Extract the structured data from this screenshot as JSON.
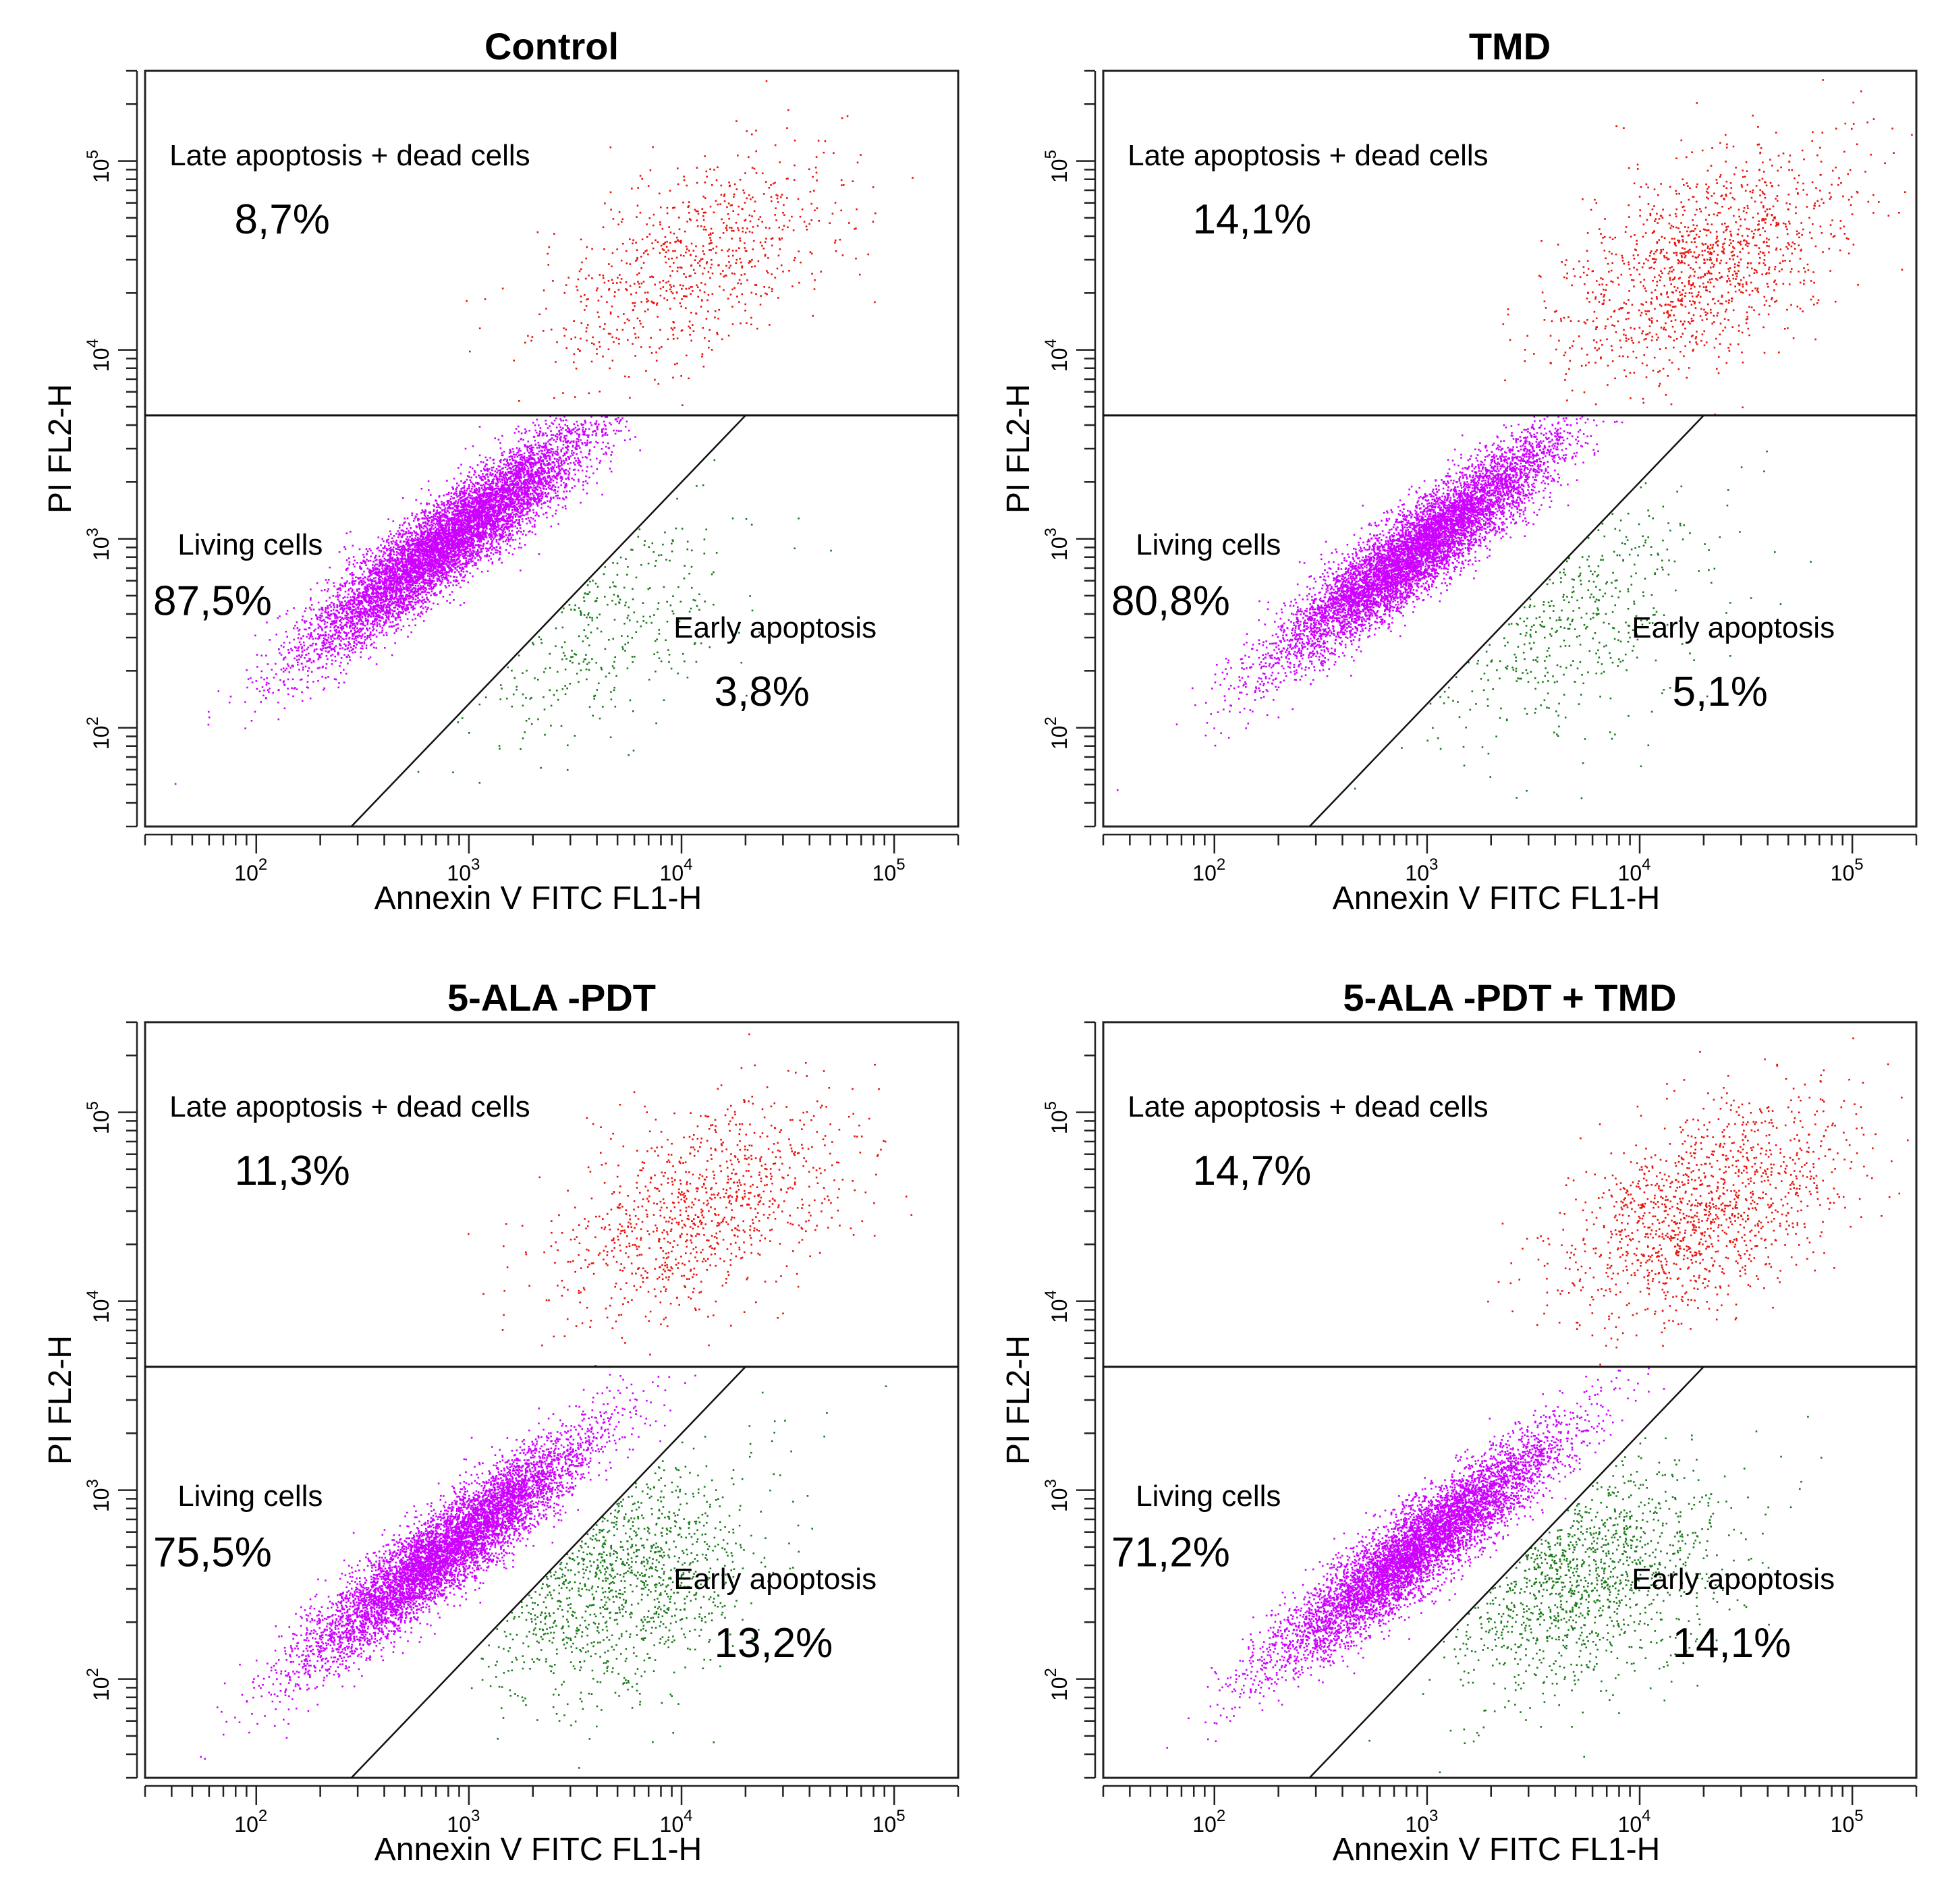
{
  "chart_data": [
    {
      "type": "scatter",
      "title": "Control",
      "xlabel": "Annexin V FITC FL1-H",
      "ylabel": "PI FL2-H",
      "xscale": "log",
      "yscale": "log",
      "xlim": [
        30,
        200000
      ],
      "ylim": [
        30,
        300000
      ],
      "xticks": [
        {
          "base": "10",
          "exp": "2"
        },
        {
          "base": "10",
          "exp": "3"
        },
        {
          "base": "10",
          "exp": "4"
        },
        {
          "base": "10",
          "exp": "5"
        }
      ],
      "yticks": [
        {
          "base": "10",
          "exp": "2"
        },
        {
          "base": "10",
          "exp": "3"
        },
        {
          "base": "10",
          "exp": "4"
        },
        {
          "base": "10",
          "exp": "5"
        }
      ],
      "gate": {
        "pi_threshold": 4500,
        "diagonal_from": [
          280,
          30
        ],
        "diagonal_to": [
          20000,
          4500
        ]
      },
      "quadrants": {
        "late": {
          "label": "Late apoptosis + dead cells",
          "value": "8,7%"
        },
        "living": {
          "label": "Living cells",
          "value": "87,5%"
        },
        "early": {
          "label": "Early apoptosis",
          "value": "3,8%"
        }
      },
      "series": [
        {
          "name": "Living cells",
          "color": "#cc00ff",
          "fraction": 0.875,
          "center": [
            800,
            1000
          ]
        },
        {
          "name": "Early apoptosis",
          "color": "#1a7a1a",
          "fraction": 0.038,
          "center": [
            3500,
            400
          ]
        },
        {
          "name": "Late apoptosis + dead cells",
          "color": "#e8120c",
          "fraction": 0.087,
          "center": [
            12000,
            30000
          ]
        }
      ]
    },
    {
      "type": "scatter",
      "title": "TMD",
      "xlabel": "Annexin V FITC FL1-H",
      "ylabel": "PI FL2-H",
      "xscale": "log",
      "yscale": "log",
      "xlim": [
        30,
        200000
      ],
      "ylim": [
        30,
        300000
      ],
      "xticks": [
        {
          "base": "10",
          "exp": "2"
        },
        {
          "base": "10",
          "exp": "3"
        },
        {
          "base": "10",
          "exp": "4"
        },
        {
          "base": "10",
          "exp": "5"
        }
      ],
      "yticks": [
        {
          "base": "10",
          "exp": "2"
        },
        {
          "base": "10",
          "exp": "3"
        },
        {
          "base": "10",
          "exp": "4"
        },
        {
          "base": "10",
          "exp": "5"
        }
      ],
      "gate": {
        "pi_threshold": 4500,
        "diagonal_from": [
          280,
          30
        ],
        "diagonal_to": [
          20000,
          4500
        ]
      },
      "quadrants": {
        "late": {
          "label": "Late apoptosis + dead cells",
          "value": "14,1%"
        },
        "living": {
          "label": "Living cells",
          "value": "80,8%"
        },
        "early": {
          "label": "Early apoptosis",
          "value": "5,1%"
        }
      },
      "series": [
        {
          "name": "Living cells",
          "color": "#cc00ff",
          "fraction": 0.808,
          "center": [
            900,
            900
          ]
        },
        {
          "name": "Early apoptosis",
          "color": "#1a7a1a",
          "fraction": 0.051,
          "center": [
            4000,
            400
          ]
        },
        {
          "name": "Late apoptosis + dead cells",
          "color": "#e8120c",
          "fraction": 0.141,
          "center": [
            20000,
            30000
          ]
        }
      ]
    },
    {
      "type": "scatter",
      "title": "5-ALA -PDT",
      "xlabel": "Annexin V FITC FL1-H",
      "ylabel": "PI FL2-H",
      "xscale": "log",
      "yscale": "log",
      "xlim": [
        30,
        200000
      ],
      "ylim": [
        30,
        300000
      ],
      "xticks": [
        {
          "base": "10",
          "exp": "2"
        },
        {
          "base": "10",
          "exp": "3"
        },
        {
          "base": "10",
          "exp": "4"
        },
        {
          "base": "10",
          "exp": "5"
        }
      ],
      "yticks": [
        {
          "base": "10",
          "exp": "2"
        },
        {
          "base": "10",
          "exp": "3"
        },
        {
          "base": "10",
          "exp": "4"
        },
        {
          "base": "10",
          "exp": "5"
        }
      ],
      "gate": {
        "pi_threshold": 4500,
        "diagonal_from": [
          280,
          30
        ],
        "diagonal_to": [
          20000,
          4500
        ]
      },
      "quadrants": {
        "late": {
          "label": "Late apoptosis + dead cells",
          "value": "11,3%"
        },
        "living": {
          "label": "Living cells",
          "value": "75,5%"
        },
        "early": {
          "label": "Early apoptosis",
          "value": "13,2%"
        }
      },
      "series": [
        {
          "name": "Living cells",
          "color": "#cc00ff",
          "fraction": 0.755,
          "center": [
            800,
            500
          ]
        },
        {
          "name": "Early apoptosis",
          "color": "#1a7a1a",
          "fraction": 0.132,
          "center": [
            4500,
            350
          ]
        },
        {
          "name": "Late apoptosis + dead cells",
          "color": "#e8120c",
          "fraction": 0.113,
          "center": [
            12000,
            30000
          ]
        }
      ]
    },
    {
      "type": "scatter",
      "title": "5-ALA -PDT + TMD",
      "xlabel": "Annexin V FITC FL1-H",
      "ylabel": "PI FL2-H",
      "xscale": "log",
      "yscale": "log",
      "xlim": [
        30,
        200000
      ],
      "ylim": [
        30,
        300000
      ],
      "xticks": [
        {
          "base": "10",
          "exp": "2"
        },
        {
          "base": "10",
          "exp": "3"
        },
        {
          "base": "10",
          "exp": "4"
        },
        {
          "base": "10",
          "exp": "5"
        }
      ],
      "yticks": [
        {
          "base": "10",
          "exp": "2"
        },
        {
          "base": "10",
          "exp": "3"
        },
        {
          "base": "10",
          "exp": "4"
        },
        {
          "base": "10",
          "exp": "5"
        }
      ],
      "gate": {
        "pi_threshold": 4500,
        "diagonal_from": [
          280,
          30
        ],
        "diagonal_to": [
          20000,
          4500
        ]
      },
      "quadrants": {
        "late": {
          "label": "Late apoptosis + dead cells",
          "value": "14,7%"
        },
        "living": {
          "label": "Living cells",
          "value": "71,2%"
        },
        "early": {
          "label": "Early apoptosis",
          "value": "14,1%"
        }
      },
      "series": [
        {
          "name": "Living cells",
          "color": "#cc00ff",
          "fraction": 0.712,
          "center": [
            900,
            500
          ]
        },
        {
          "name": "Early apoptosis",
          "color": "#1a7a1a",
          "fraction": 0.141,
          "center": [
            5000,
            350
          ]
        },
        {
          "name": "Late apoptosis + dead cells",
          "color": "#e8120c",
          "fraction": 0.147,
          "center": [
            20000,
            30000
          ]
        }
      ]
    }
  ]
}
